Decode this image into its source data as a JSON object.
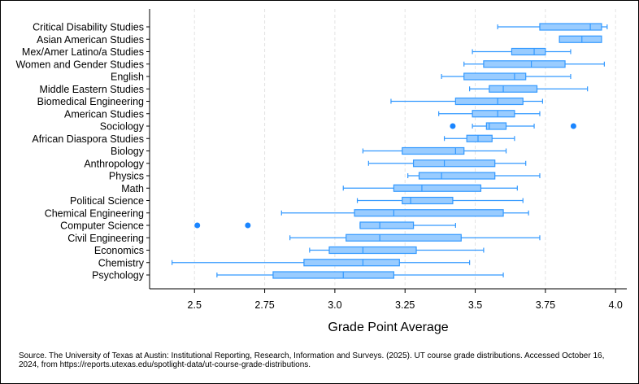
{
  "chart_data": {
    "type": "boxplot",
    "orientation": "horizontal",
    "xlabel": "Grade Point Average",
    "xlim": [
      2.34,
      4.04
    ],
    "x_ticks": [
      "2.5",
      "2.75",
      "3.0",
      "3.25",
      "3.5",
      "3.75",
      "4.0"
    ],
    "x_tick_values": [
      2.5,
      2.75,
      3.0,
      3.25,
      3.5,
      3.75,
      4.0
    ],
    "grid_x": true,
    "box_color": "#99ccff",
    "line_color": "#3399ff",
    "outlier_color": "#1a85ff",
    "categories": [
      {
        "name": "Critical Disability Studies",
        "whisker_low": 3.58,
        "q1": 3.73,
        "median": 3.91,
        "q3": 3.95,
        "whisker_high": 3.97,
        "outliers": []
      },
      {
        "name": "Asian American Studies",
        "whisker_low": 3.8,
        "q1": 3.8,
        "median": 3.88,
        "q3": 3.95,
        "whisker_high": 3.95,
        "outliers": []
      },
      {
        "name": "Mex/Amer Latino/a Studies",
        "whisker_low": 3.49,
        "q1": 3.63,
        "median": 3.71,
        "q3": 3.75,
        "whisker_high": 3.84,
        "outliers": []
      },
      {
        "name": "Women and Gender Studies",
        "whisker_low": 3.46,
        "q1": 3.53,
        "median": 3.7,
        "q3": 3.82,
        "whisker_high": 3.96,
        "outliers": []
      },
      {
        "name": "English",
        "whisker_low": 3.38,
        "q1": 3.46,
        "median": 3.64,
        "q3": 3.68,
        "whisker_high": 3.84,
        "outliers": []
      },
      {
        "name": "Middle Eastern Studies",
        "whisker_low": 3.48,
        "q1": 3.55,
        "median": 3.6,
        "q3": 3.72,
        "whisker_high": 3.9,
        "outliers": []
      },
      {
        "name": "Biomedical Engineering",
        "whisker_low": 3.2,
        "q1": 3.43,
        "median": 3.58,
        "q3": 3.67,
        "whisker_high": 3.74,
        "outliers": []
      },
      {
        "name": "American Studies",
        "whisker_low": 3.37,
        "q1": 3.49,
        "median": 3.58,
        "q3": 3.64,
        "whisker_high": 3.73,
        "outliers": []
      },
      {
        "name": "Sociology",
        "whisker_low": 3.49,
        "q1": 3.54,
        "median": 3.55,
        "q3": 3.61,
        "whisker_high": 3.71,
        "outliers": [
          3.42,
          3.85
        ]
      },
      {
        "name": "African Diaspora Studies",
        "whisker_low": 3.39,
        "q1": 3.47,
        "median": 3.51,
        "q3": 3.56,
        "whisker_high": 3.64,
        "outliers": []
      },
      {
        "name": "Biology",
        "whisker_low": 3.1,
        "q1": 3.24,
        "median": 3.43,
        "q3": 3.46,
        "whisker_high": 3.61,
        "outliers": []
      },
      {
        "name": "Anthropology",
        "whisker_low": 3.12,
        "q1": 3.28,
        "median": 3.39,
        "q3": 3.57,
        "whisker_high": 3.68,
        "outliers": []
      },
      {
        "name": "Physics",
        "whisker_low": 3.26,
        "q1": 3.3,
        "median": 3.38,
        "q3": 3.57,
        "whisker_high": 3.73,
        "outliers": []
      },
      {
        "name": "Math",
        "whisker_low": 3.03,
        "q1": 3.21,
        "median": 3.31,
        "q3": 3.52,
        "whisker_high": 3.65,
        "outliers": []
      },
      {
        "name": "Political Science",
        "whisker_low": 3.08,
        "q1": 3.24,
        "median": 3.27,
        "q3": 3.42,
        "whisker_high": 3.67,
        "outliers": []
      },
      {
        "name": "Chemical Engineering",
        "whisker_low": 2.81,
        "q1": 3.07,
        "median": 3.21,
        "q3": 3.6,
        "whisker_high": 3.69,
        "outliers": []
      },
      {
        "name": "Computer Science",
        "whisker_low": 3.09,
        "q1": 3.09,
        "median": 3.16,
        "q3": 3.28,
        "whisker_high": 3.43,
        "outliers": [
          2.51,
          2.69
        ]
      },
      {
        "name": "Civil Engineering",
        "whisker_low": 2.84,
        "q1": 3.04,
        "median": 3.16,
        "q3": 3.45,
        "whisker_high": 3.73,
        "outliers": []
      },
      {
        "name": "Economics",
        "whisker_low": 2.91,
        "q1": 2.98,
        "median": 3.1,
        "q3": 3.29,
        "whisker_high": 3.53,
        "outliers": []
      },
      {
        "name": "Chemistry",
        "whisker_low": 2.42,
        "q1": 2.89,
        "median": 3.1,
        "q3": 3.23,
        "whisker_high": 3.48,
        "outliers": []
      },
      {
        "name": "Psychology",
        "whisker_low": 2.58,
        "q1": 2.78,
        "median": 3.03,
        "q3": 3.21,
        "whisker_high": 3.6,
        "outliers": []
      }
    ]
  },
  "source_note": "Source. The University of Texas at Austin: Institutional Reporting, Research, Information and Surveys. (2025). UT course grade distributions. Accessed October 16, 2024, from https://reports.utexas.edu/spotlight-data/ut-course-grade-distributions."
}
